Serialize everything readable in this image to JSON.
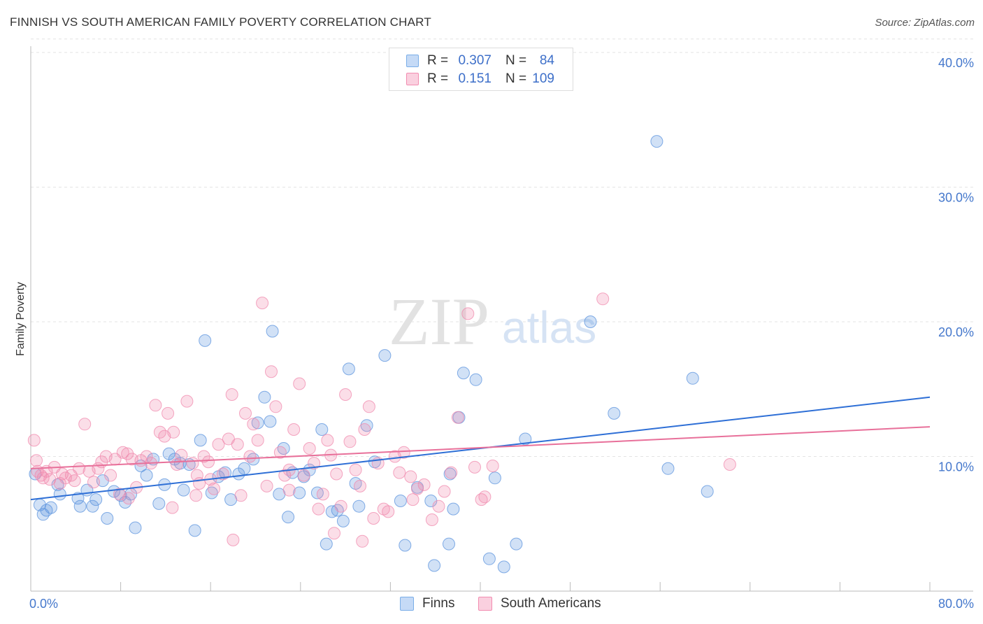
{
  "header": {
    "title": "FINNISH VS SOUTH AMERICAN FAMILY POVERTY CORRELATION CHART",
    "source": "Source: ZipAtlas.com"
  },
  "watermark": {
    "zip": "ZIP",
    "atlas": "atlas"
  },
  "legend": {
    "rows": [
      {
        "r_label": "R =",
        "r_value": "0.307",
        "n_label": "N =",
        "n_value": "84",
        "color": "#7aaee8",
        "fill": "#c5daf6"
      },
      {
        "r_label": "R =",
        "r_value": "0.151",
        "n_label": "N =",
        "n_value": "109",
        "color": "#f28cb0",
        "fill": "#fad0df"
      }
    ],
    "bottom": [
      {
        "label": "Finns",
        "color": "#7aaee8",
        "fill": "#c5daf6"
      },
      {
        "label": "South Americans",
        "color": "#f28cb0",
        "fill": "#fad0df"
      }
    ]
  },
  "chart_data": {
    "type": "scatter",
    "title": "FINNISH VS SOUTH AMERICAN FAMILY POVERTY CORRELATION CHART",
    "xlabel": "",
    "ylabel": "Family Poverty",
    "xlim": [
      0,
      80
    ],
    "ylim": [
      0,
      40
    ],
    "x_tick_labels": [
      "0.0%",
      "80.0%"
    ],
    "y_ticks": [
      10,
      20,
      30,
      40
    ],
    "y_tick_labels": [
      "10.0%",
      "20.0%",
      "30.0%",
      "40.0%"
    ],
    "grid": true,
    "legend_position": "top-center",
    "series": [
      {
        "name": "Finns",
        "color": "#5b93de",
        "trend": {
          "x": [
            0,
            80
          ],
          "y": [
            6.8,
            14.4
          ],
          "color": "#2e6fd6"
        },
        "points": [
          [
            0.4,
            8.7
          ],
          [
            0.8,
            6.4
          ],
          [
            1.1,
            5.7
          ],
          [
            1.4,
            6.0
          ],
          [
            1.8,
            6.2
          ],
          [
            2.4,
            7.9
          ],
          [
            2.6,
            7.2
          ],
          [
            4.2,
            6.9
          ],
          [
            4.4,
            6.3
          ],
          [
            5.0,
            7.5
          ],
          [
            5.5,
            6.3
          ],
          [
            5.8,
            6.8
          ],
          [
            6.4,
            8.2
          ],
          [
            6.8,
            5.4
          ],
          [
            7.4,
            7.4
          ],
          [
            8.0,
            7.1
          ],
          [
            8.4,
            6.6
          ],
          [
            8.9,
            7.2
          ],
          [
            9.3,
            4.7
          ],
          [
            9.8,
            9.3
          ],
          [
            10.3,
            8.6
          ],
          [
            10.9,
            9.8
          ],
          [
            11.4,
            6.5
          ],
          [
            11.9,
            7.9
          ],
          [
            12.3,
            10.2
          ],
          [
            12.8,
            9.8
          ],
          [
            13.3,
            9.5
          ],
          [
            13.6,
            7.5
          ],
          [
            14.1,
            9.4
          ],
          [
            14.6,
            4.5
          ],
          [
            15.1,
            11.2
          ],
          [
            15.5,
            18.6
          ],
          [
            16.1,
            7.3
          ],
          [
            16.7,
            8.5
          ],
          [
            17.3,
            8.8
          ],
          [
            17.8,
            6.8
          ],
          [
            18.5,
            8.7
          ],
          [
            19.0,
            9.1
          ],
          [
            19.8,
            9.8
          ],
          [
            20.2,
            12.5
          ],
          [
            20.8,
            14.4
          ],
          [
            21.3,
            12.6
          ],
          [
            21.5,
            19.3
          ],
          [
            22.1,
            7.2
          ],
          [
            22.5,
            10.6
          ],
          [
            22.9,
            5.5
          ],
          [
            23.3,
            8.8
          ],
          [
            23.9,
            7.3
          ],
          [
            24.3,
            8.5
          ],
          [
            24.8,
            9.0
          ],
          [
            25.5,
            7.3
          ],
          [
            25.9,
            12.0
          ],
          [
            26.3,
            3.5
          ],
          [
            26.8,
            5.9
          ],
          [
            27.3,
            6.0
          ],
          [
            27.8,
            5.2
          ],
          [
            28.3,
            16.5
          ],
          [
            28.9,
            8.0
          ],
          [
            29.2,
            6.3
          ],
          [
            29.9,
            12.3
          ],
          [
            30.6,
            9.6
          ],
          [
            31.5,
            17.5
          ],
          [
            32.9,
            6.7
          ],
          [
            33.3,
            3.4
          ],
          [
            34.4,
            7.7
          ],
          [
            35.6,
            6.7
          ],
          [
            35.9,
            1.9
          ],
          [
            37.2,
            3.5
          ],
          [
            37.3,
            8.7
          ],
          [
            37.6,
            6.1
          ],
          [
            38.1,
            12.9
          ],
          [
            38.5,
            16.2
          ],
          [
            39.6,
            15.7
          ],
          [
            40.8,
            2.4
          ],
          [
            41.3,
            8.4
          ],
          [
            42.1,
            1.8
          ],
          [
            43.2,
            3.5
          ],
          [
            44.0,
            11.3
          ],
          [
            49.8,
            20.0
          ],
          [
            51.9,
            13.2
          ],
          [
            55.7,
            33.4
          ],
          [
            56.7,
            9.1
          ],
          [
            58.9,
            15.8
          ],
          [
            60.2,
            7.4
          ]
        ]
      },
      {
        "name": "South Americans",
        "color": "#f08aad",
        "trend": {
          "x": [
            0,
            80
          ],
          "y": [
            9.1,
            12.2
          ],
          "color": "#e8709a"
        },
        "points": [
          [
            0.3,
            11.2
          ],
          [
            0.5,
            9.7
          ],
          [
            0.6,
            8.9
          ],
          [
            0.9,
            8.6
          ],
          [
            1.1,
            8.4
          ],
          [
            1.4,
            8.9
          ],
          [
            1.7,
            8.3
          ],
          [
            2.1,
            9.2
          ],
          [
            2.6,
            8.0
          ],
          [
            2.8,
            8.7
          ],
          [
            3.1,
            8.4
          ],
          [
            3.6,
            8.6
          ],
          [
            3.9,
            8.2
          ],
          [
            4.3,
            9.1
          ],
          [
            4.8,
            12.4
          ],
          [
            5.2,
            8.9
          ],
          [
            5.6,
            8.1
          ],
          [
            6.0,
            9.1
          ],
          [
            6.3,
            9.6
          ],
          [
            6.7,
            10.0
          ],
          [
            7.1,
            8.6
          ],
          [
            7.5,
            9.8
          ],
          [
            7.9,
            7.2
          ],
          [
            8.2,
            10.3
          ],
          [
            8.6,
            10.2
          ],
          [
            9.0,
            9.8
          ],
          [
            9.4,
            7.7
          ],
          [
            9.8,
            9.7
          ],
          [
            10.3,
            10.0
          ],
          [
            10.7,
            9.5
          ],
          [
            11.1,
            13.8
          ],
          [
            11.5,
            11.8
          ],
          [
            11.9,
            11.5
          ],
          [
            12.2,
            13.2
          ],
          [
            12.7,
            11.8
          ],
          [
            13.0,
            9.4
          ],
          [
            13.4,
            10.1
          ],
          [
            13.9,
            14.1
          ],
          [
            14.4,
            9.5
          ],
          [
            14.8,
            8.6
          ],
          [
            15.0,
            8.0
          ],
          [
            15.4,
            10.0
          ],
          [
            15.8,
            9.6
          ],
          [
            16.3,
            7.6
          ],
          [
            16.7,
            10.9
          ],
          [
            17.1,
            8.7
          ],
          [
            17.6,
            11.3
          ],
          [
            17.9,
            14.6
          ],
          [
            18.4,
            10.9
          ],
          [
            18.7,
            7.1
          ],
          [
            19.1,
            13.2
          ],
          [
            19.5,
            10.0
          ],
          [
            19.8,
            12.4
          ],
          [
            20.2,
            11.2
          ],
          [
            20.6,
            21.4
          ],
          [
            21.0,
            7.8
          ],
          [
            21.4,
            16.3
          ],
          [
            21.8,
            13.7
          ],
          [
            22.2,
            10.3
          ],
          [
            22.6,
            8.6
          ],
          [
            23.0,
            9.0
          ],
          [
            23.4,
            12.0
          ],
          [
            23.9,
            15.4
          ],
          [
            24.3,
            8.6
          ],
          [
            24.8,
            10.6
          ],
          [
            25.2,
            9.5
          ],
          [
            25.6,
            6.1
          ],
          [
            26.0,
            7.2
          ],
          [
            26.4,
            11.2
          ],
          [
            26.7,
            10.1
          ],
          [
            27.2,
            8.7
          ],
          [
            27.6,
            6.3
          ],
          [
            28.0,
            14.6
          ],
          [
            28.4,
            11.1
          ],
          [
            28.9,
            9.0
          ],
          [
            29.3,
            7.8
          ],
          [
            29.7,
            12.0
          ],
          [
            30.1,
            13.7
          ],
          [
            30.5,
            5.4
          ],
          [
            30.9,
            9.5
          ],
          [
            31.4,
            6.1
          ],
          [
            31.8,
            5.9
          ],
          [
            32.4,
            10.0
          ],
          [
            32.8,
            8.8
          ],
          [
            33.2,
            10.3
          ],
          [
            33.8,
            8.5
          ],
          [
            34.4,
            7.6
          ],
          [
            35.0,
            7.9
          ],
          [
            35.7,
            5.3
          ],
          [
            36.3,
            6.3
          ],
          [
            36.8,
            7.4
          ],
          [
            37.4,
            8.8
          ],
          [
            38.0,
            12.9
          ],
          [
            38.9,
            20.6
          ],
          [
            39.5,
            9.2
          ],
          [
            40.1,
            6.8
          ],
          [
            40.4,
            7.0
          ],
          [
            41.1,
            9.3
          ],
          [
            50.9,
            21.7
          ],
          [
            62.2,
            9.4
          ],
          [
            16.0,
            8.3
          ],
          [
            18.0,
            3.8
          ],
          [
            23.0,
            7.5
          ],
          [
            27.0,
            4.3
          ],
          [
            29.5,
            3.7
          ],
          [
            34.0,
            6.8
          ],
          [
            8.7,
            6.9
          ],
          [
            12.6,
            6.2
          ],
          [
            14.7,
            7.1
          ]
        ]
      }
    ]
  }
}
